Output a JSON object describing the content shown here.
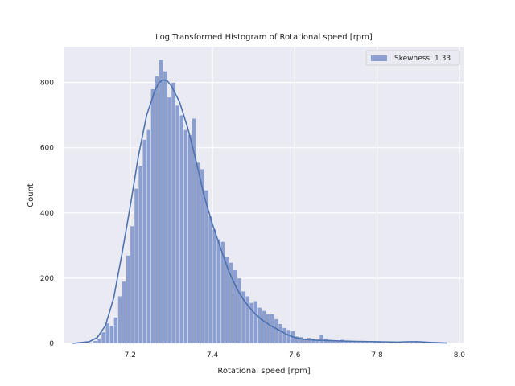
{
  "chart_data": {
    "type": "bar",
    "title": "Log Transformed Histogram of Rotational speed [rpm]",
    "xlabel": "Rotational speed [rpm]",
    "ylabel": "Count",
    "xlim": [
      7.04,
      8.01
    ],
    "ylim": [
      0,
      910
    ],
    "x_ticks": [
      7.2,
      7.4,
      7.6,
      7.8,
      8.0
    ],
    "x_tick_labels": [
      "7.2",
      "7.4",
      "7.6",
      "7.8",
      "8.0"
    ],
    "y_ticks": [
      0,
      200,
      400,
      600,
      800
    ],
    "y_tick_labels": [
      "0",
      "200",
      "400",
      "600",
      "800"
    ],
    "grid": true,
    "legend_position": "top-right",
    "legend": [
      {
        "label": "Skewness: 1.33"
      }
    ],
    "bin_width": 0.01,
    "bin_start": 7.1,
    "bin_values": [
      3,
      8,
      15,
      35,
      62,
      55,
      80,
      145,
      190,
      270,
      360,
      475,
      545,
      625,
      655,
      780,
      820,
      870,
      835,
      755,
      800,
      730,
      700,
      655,
      640,
      690,
      555,
      535,
      470,
      390,
      350,
      320,
      312,
      265,
      248,
      225,
      200,
      160,
      145,
      125,
      130,
      110,
      100,
      90,
      90,
      75,
      60,
      48,
      42,
      38,
      22,
      20,
      15,
      18,
      15,
      12,
      28,
      15,
      12,
      10,
      8,
      12,
      6,
      8,
      5,
      4,
      4,
      4,
      3,
      4,
      5,
      3,
      2,
      3,
      3,
      3,
      2,
      2,
      3,
      4,
      2,
      5,
      5,
      3,
      2,
      2,
      1
    ],
    "kde": {
      "x": [
        7.06,
        7.1,
        7.12,
        7.14,
        7.16,
        7.18,
        7.2,
        7.22,
        7.24,
        7.26,
        7.27,
        7.28,
        7.29,
        7.3,
        7.32,
        7.34,
        7.36,
        7.38,
        7.4,
        7.42,
        7.44,
        7.46,
        7.48,
        7.5,
        7.52,
        7.54,
        7.56,
        7.58,
        7.6,
        7.62,
        7.65,
        7.7,
        7.75,
        7.8,
        7.85,
        7.88,
        7.9,
        7.93,
        7.97
      ],
      "y": [
        0,
        5,
        18,
        55,
        140,
        275,
        420,
        575,
        700,
        775,
        800,
        808,
        805,
        790,
        740,
        660,
        560,
        450,
        365,
        290,
        220,
        165,
        125,
        95,
        72,
        55,
        42,
        28,
        18,
        13,
        10,
        8,
        6,
        5,
        4,
        5,
        5,
        3,
        1
      ]
    },
    "colors": {
      "bar_fill": "#8b9fd0",
      "kde_line": "#4c72b0",
      "plot_background": "#eaeaf2",
      "grid": "#ffffff"
    }
  }
}
